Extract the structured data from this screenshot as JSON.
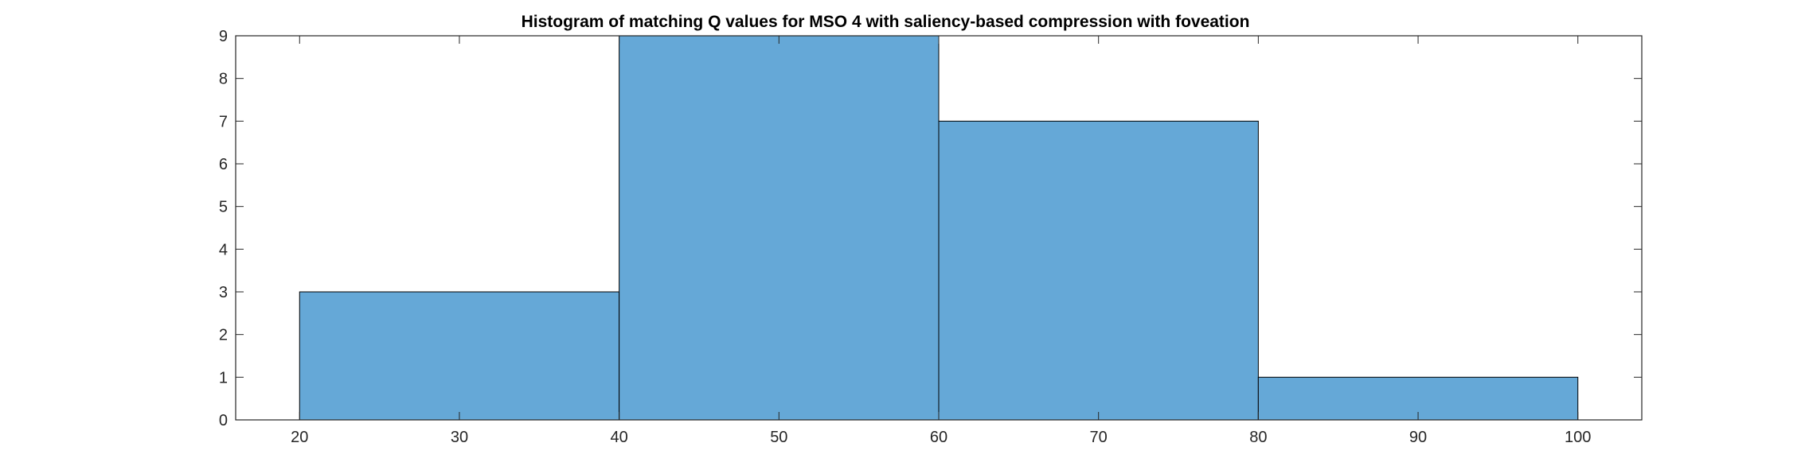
{
  "chart_data": {
    "type": "bar",
    "title": "Histogram of matching Q values for MSO 4 with saliency-based compression with foveation",
    "xlabel": "",
    "ylabel": "",
    "bin_edges": [
      20,
      40,
      60,
      80,
      100
    ],
    "values": [
      3,
      9,
      7,
      1
    ],
    "xlim": [
      16,
      104
    ],
    "ylim": [
      0,
      9
    ],
    "xticks": [
      20,
      30,
      40,
      50,
      60,
      70,
      80,
      90,
      100
    ],
    "yticks": [
      0,
      1,
      2,
      3,
      4,
      5,
      6,
      7,
      8,
      9
    ],
    "grid": false,
    "bar_color": "#65A8D7",
    "edge_color": "#000000"
  }
}
